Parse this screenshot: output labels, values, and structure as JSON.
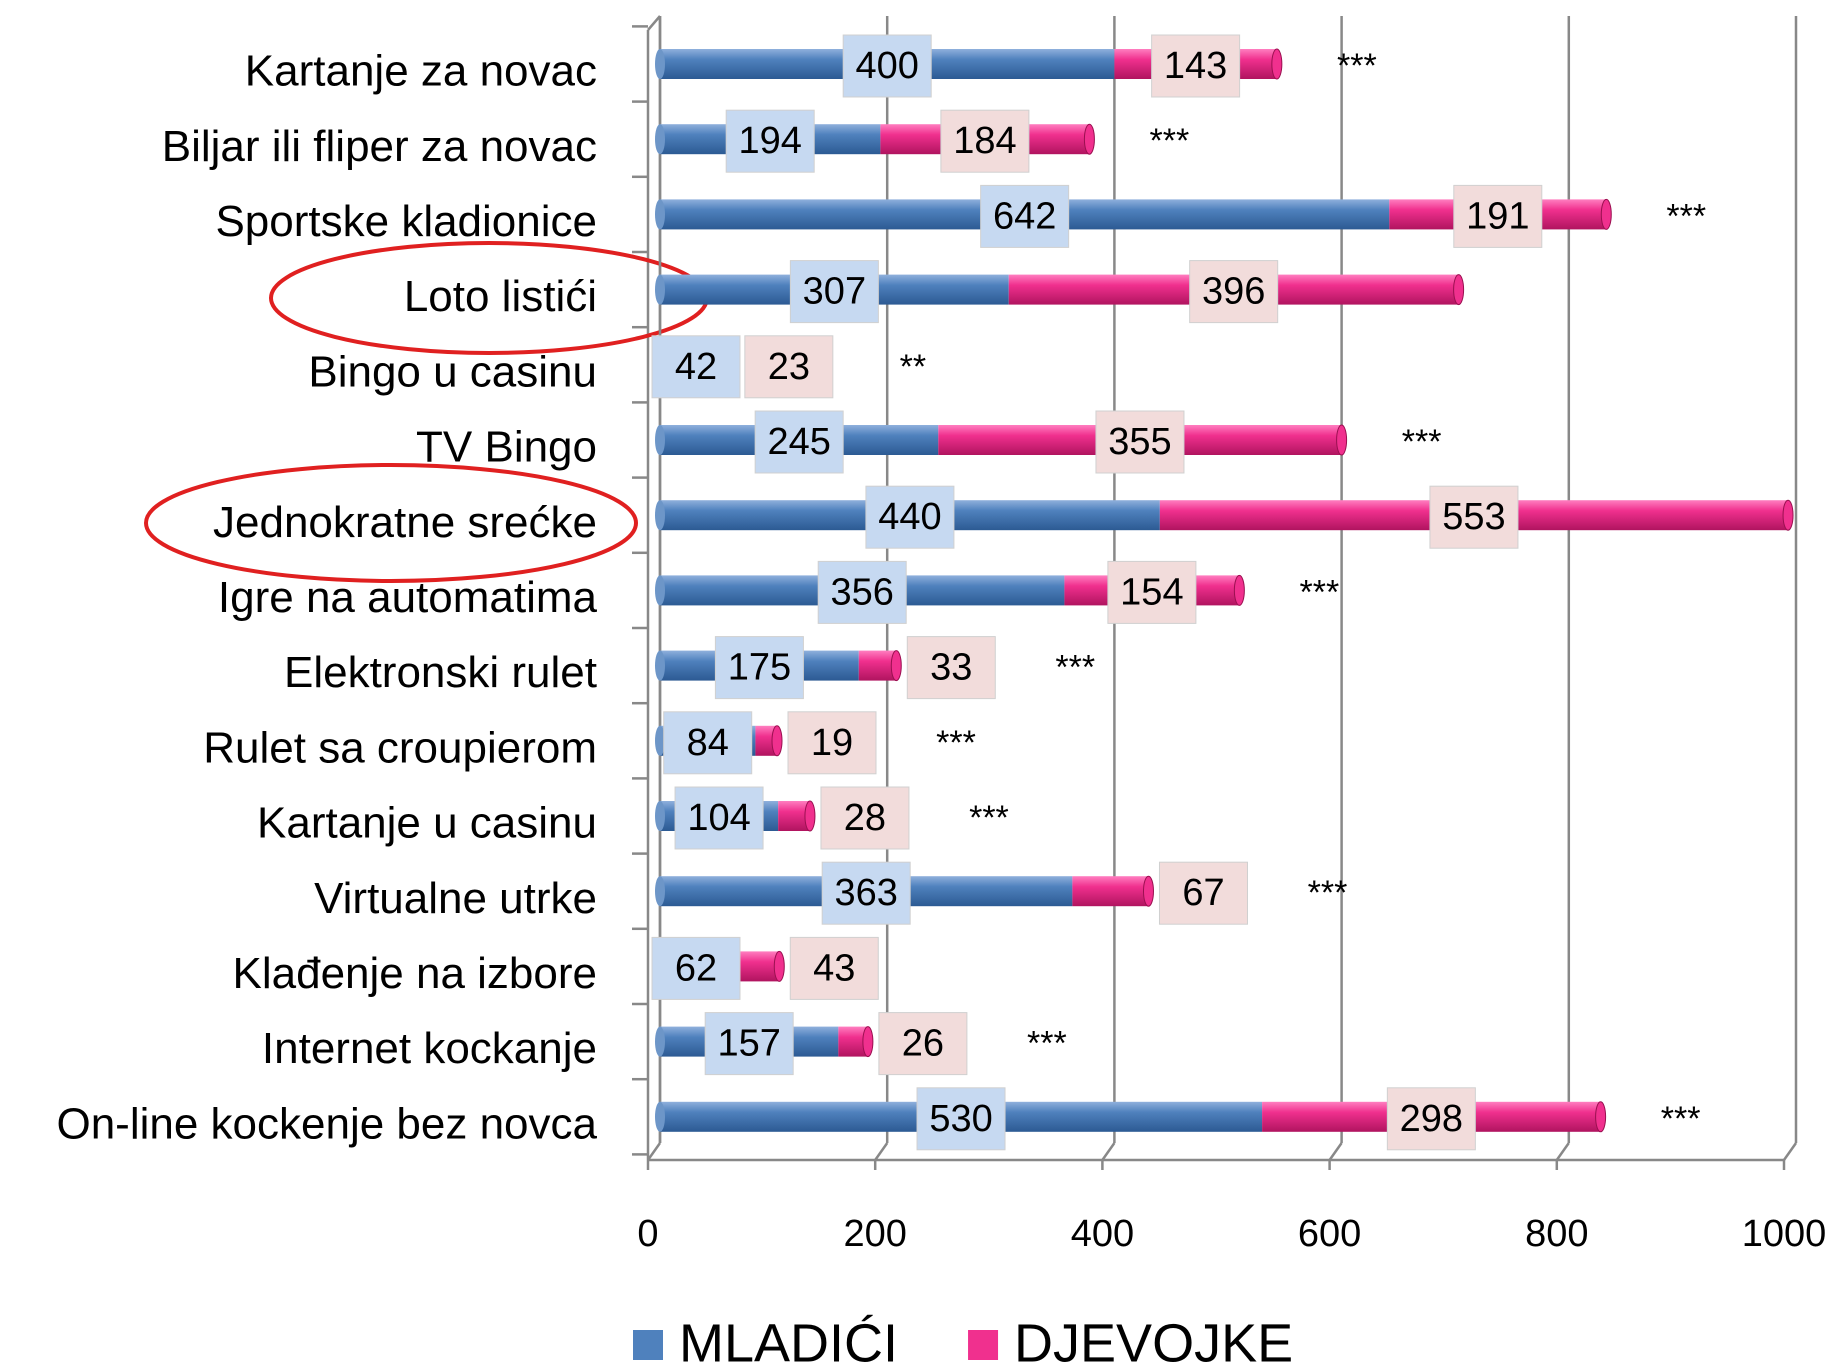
{
  "chart_data": {
    "type": "stacked-bar-horizontal",
    "categories": [
      "Kartanje za novac",
      "Biljar ili fliper za novac",
      "Sportske kladionice",
      "Loto listići",
      "Bingo u casinu",
      "TV Bingo",
      "Jednokratne srećke",
      "Igre na automatima",
      "Elektronski rulet",
      "Rulet sa croupierom",
      "Kartanje u casinu",
      "Virtualne utrke",
      "Klađenje na izbore",
      "Internet kockanje",
      "On-line kockenje bez novca"
    ],
    "series": [
      {
        "name": "MLADIĆI",
        "color": "#4f81bd",
        "values": [
          400,
          194,
          642,
          307,
          42,
          245,
          440,
          356,
          175,
          84,
          104,
          363,
          62,
          157,
          530
        ]
      },
      {
        "name": "DJEVOJKE",
        "color": "#f0308e",
        "values": [
          143,
          184,
          191,
          396,
          23,
          355,
          553,
          154,
          33,
          19,
          28,
          67,
          43,
          26,
          298
        ]
      }
    ],
    "annotations": [
      "***",
      "***",
      "***",
      null,
      "**",
      "***",
      null,
      "***",
      "***",
      "***",
      "***",
      "***",
      null,
      "***",
      "***"
    ],
    "xlim": [
      0,
      1000
    ],
    "xticks": [
      0,
      200,
      400,
      600,
      800,
      1000
    ],
    "grid": true,
    "legend": "bottom"
  }
}
